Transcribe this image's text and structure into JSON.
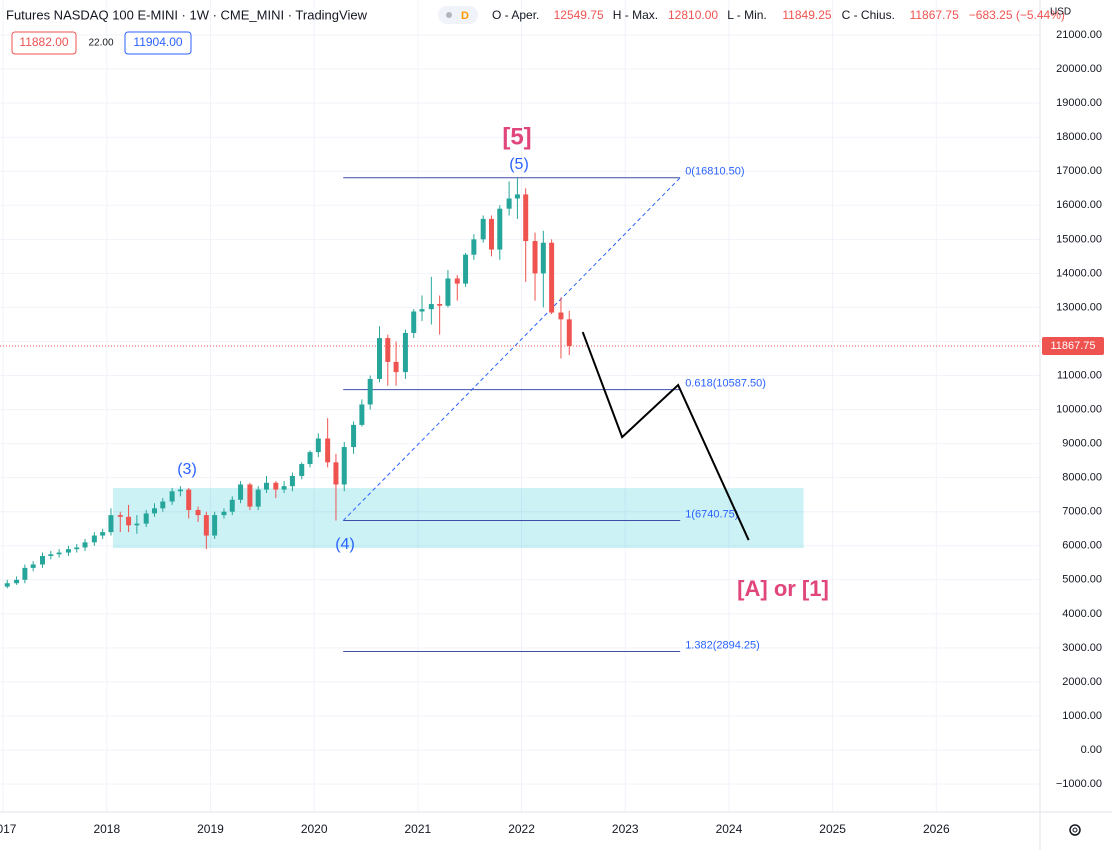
{
  "header": {
    "title": "Futures NASDAQ 100 E-MINI · 1W · CME_MINI · TradingView",
    "badge": "D",
    "ohlc": [
      {
        "label": "O - Aper.",
        "value": "12549.75"
      },
      {
        "label": "H - Max.",
        "value": "12810.00"
      },
      {
        "label": "L - Min.",
        "value": "11849.25"
      },
      {
        "label": "C - Chius.",
        "value": "11867.75"
      }
    ],
    "change": "−683.25 (−5.44%)",
    "bid": "11882.00",
    "spread": "22.00",
    "ask": "11904.00",
    "currency": "USD"
  },
  "chart_data": {
    "type": "candlestick",
    "up_color": "#26a69a",
    "down_color": "#ef5350",
    "grid": true,
    "x": [
      2017.04,
      2017.13,
      2017.21,
      2017.29,
      2017.38,
      2017.46,
      2017.54,
      2017.63,
      2017.71,
      2017.79,
      2017.88,
      2017.96,
      2018.04,
      2018.13,
      2018.21,
      2018.29,
      2018.38,
      2018.46,
      2018.54,
      2018.63,
      2018.71,
      2018.79,
      2018.88,
      2018.96,
      2019.04,
      2019.13,
      2019.21,
      2019.29,
      2019.38,
      2019.46,
      2019.54,
      2019.63,
      2019.71,
      2019.79,
      2019.88,
      2019.96,
      2020.04,
      2020.13,
      2020.21,
      2020.29,
      2020.38,
      2020.46,
      2020.54,
      2020.63,
      2020.71,
      2020.79,
      2020.88,
      2020.96,
      2021.04,
      2021.13,
      2021.21,
      2021.29,
      2021.38,
      2021.46,
      2021.54,
      2021.63,
      2021.71,
      2021.79,
      2021.88,
      2021.96,
      2022.04,
      2022.13,
      2022.21,
      2022.29,
      2022.38,
      2022.46
    ],
    "open": [
      4800,
      4900,
      5000,
      5350,
      5450,
      5700,
      5750,
      5800,
      5900,
      5950,
      6100,
      6300,
      6400,
      6900,
      6850,
      6600,
      6650,
      6950,
      7100,
      7300,
      7600,
      7650,
      7050,
      6900,
      6300,
      6900,
      7000,
      7350,
      7800,
      7150,
      7650,
      7850,
      7650,
      7750,
      8050,
      8400,
      8750,
      9150,
      8450,
      7800,
      8900,
      9550,
      10150,
      10900,
      12100,
      11400,
      11100,
      12250,
      12880,
      12950,
      13100,
      13050,
      13850,
      13700,
      14550,
      15000,
      15600,
      14700,
      15900,
      16200,
      16320,
      14950,
      14000,
      14900,
      12850,
      12650
    ],
    "high": [
      5000,
      5100,
      5450,
      5550,
      5800,
      5850,
      5900,
      6000,
      6050,
      6200,
      6400,
      6500,
      7100,
      7000,
      7200,
      6900,
      7050,
      7250,
      7400,
      7700,
      7750,
      7700,
      7150,
      7000,
      7000,
      7100,
      7450,
      7900,
      7850,
      7750,
      8050,
      7900,
      7900,
      8150,
      8450,
      8800,
      9300,
      9750,
      8700,
      9050,
      9650,
      10300,
      11000,
      12450,
      12200,
      12000,
      12350,
      12950,
      13350,
      13900,
      13350,
      14100,
      13950,
      14600,
      15150,
      15700,
      15700,
      16000,
      16700,
      16810.5,
      16500,
      15200,
      15250,
      15000,
      13300,
      12900
    ],
    "low": [
      4750,
      4850,
      4900,
      5250,
      5350,
      5600,
      5650,
      5700,
      5800,
      5850,
      6000,
      6200,
      6300,
      6400,
      6400,
      6350,
      6550,
      6850,
      7000,
      7200,
      7450,
      6800,
      6700,
      5900,
      6200,
      6800,
      6900,
      7250,
      7050,
      7050,
      7550,
      7400,
      7550,
      7600,
      7950,
      8300,
      8600,
      8300,
      6740.75,
      7600,
      8700,
      9500,
      10000,
      10800,
      10700,
      10700,
      10900,
      12100,
      12600,
      12500,
      12200,
      13000,
      13200,
      13600,
      14400,
      14900,
      14500,
      14400,
      15700,
      15600,
      13750,
      13200,
      13000,
      12800,
      11500,
      11600
    ],
    "close": [
      4900,
      5000,
      5350,
      5450,
      5700,
      5750,
      5800,
      5900,
      5950,
      6100,
      6300,
      6400,
      6900,
      6850,
      6600,
      6650,
      6950,
      7100,
      7300,
      7600,
      7650,
      7050,
      6900,
      6300,
      6900,
      7000,
      7350,
      7800,
      7150,
      7650,
      7850,
      7650,
      7750,
      8050,
      8400,
      8750,
      9150,
      8450,
      7800,
      8900,
      9550,
      10150,
      10900,
      12100,
      11400,
      11100,
      12250,
      12880,
      12950,
      13100,
      13050,
      13850,
      13700,
      14550,
      15000,
      15600,
      14700,
      15900,
      16200,
      16320,
      14950,
      14000,
      14900,
      12850,
      12650,
      11867.75
    ],
    "xlim": [
      2016.97,
      2027.0
    ],
    "xticks": [
      2017,
      2018,
      2019,
      2020,
      2021,
      2022,
      2023,
      2024,
      2025,
      2026
    ],
    "ylim": [
      -1820,
      22030
    ],
    "yticks": [
      {
        "value": -1000,
        "label": "−1000.00"
      },
      {
        "value": 0,
        "label": "0.00"
      },
      {
        "value": 1000,
        "label": "1000.00"
      },
      {
        "value": 2000,
        "label": "2000.00"
      },
      {
        "value": 3000,
        "label": "3000.00"
      },
      {
        "value": 4000,
        "label": "4000.00"
      },
      {
        "value": 5000,
        "label": "5000.00"
      },
      {
        "value": 6000,
        "label": "6000.00"
      },
      {
        "value": 7000,
        "label": "7000.00"
      },
      {
        "value": 8000,
        "label": "8000.00"
      },
      {
        "value": 9000,
        "label": "9000.00"
      },
      {
        "value": 10000,
        "label": "10000.00"
      },
      {
        "value": 11000,
        "label": "11000.00"
      },
      {
        "value": 12000,
        "label": "12000.00"
      },
      {
        "value": 13000,
        "label": "13000.00"
      },
      {
        "value": 14000,
        "label": "14000.00"
      },
      {
        "value": 15000,
        "label": "15000.00"
      },
      {
        "value": 16000,
        "label": "16000.00"
      },
      {
        "value": 17000,
        "label": "17000.00"
      },
      {
        "value": 18000,
        "label": "18000.00"
      },
      {
        "value": 19000,
        "label": "19000.00"
      },
      {
        "value": 20000,
        "label": "20000.00"
      },
      {
        "value": 21000,
        "label": "21000.00"
      }
    ],
    "fib_levels": [
      {
        "label": "0(16810.50)",
        "value": 16810.5
      },
      {
        "label": "0.618(10587.50)",
        "value": 10587.5
      },
      {
        "label": "1(6740.75)",
        "value": 6740.75
      },
      {
        "label": "1.382(2894.25)",
        "value": 2894.25
      }
    ],
    "fib_x": [
      2020.28,
      2023.53
    ],
    "fib_color": "#3f4fa8",
    "trendline": {
      "x": [
        2020.28,
        2023.53
      ],
      "y": [
        6740.75,
        16810.5
      ]
    },
    "zone": {
      "x": [
        2018.06,
        2024.72
      ],
      "y": [
        5932,
        7694
      ],
      "color": "#00bcd4"
    },
    "projection": {
      "x": [
        2022.59,
        2022.97,
        2023.51,
        2024.19
      ],
      "y": [
        12276,
        9192,
        10720,
        6167
      ]
    },
    "wave_labels": [
      {
        "text": "(3)",
        "color": "#2962ff"
      },
      {
        "text": "(4)",
        "color": "#2962ff"
      },
      {
        "text": "(5)",
        "color": "#2962ff"
      },
      {
        "text": "[5]",
        "color": "#e0457b"
      },
      {
        "text": "[A] or [1]",
        "color": "#e0457b"
      }
    ]
  }
}
